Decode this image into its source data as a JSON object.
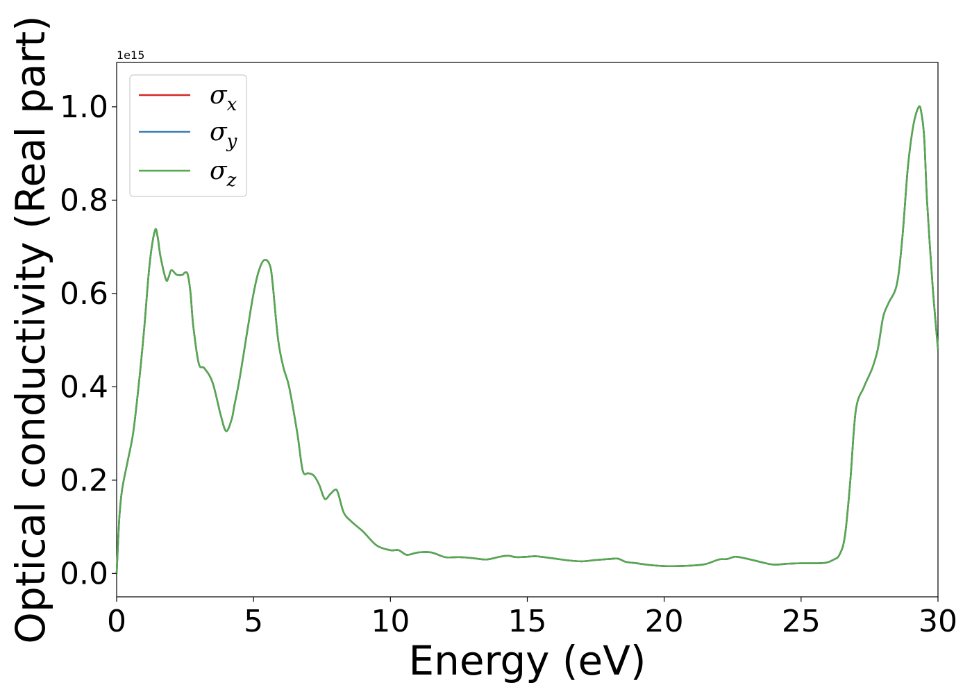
{
  "chart_data": {
    "type": "line",
    "title": "",
    "xlabel": "Energy (eV)",
    "ylabel": "Optical conductivity (Real part)",
    "y_offset_label": "1e15",
    "xlim": [
      0,
      30
    ],
    "ylim": [
      -0.05,
      1.095
    ],
    "xticks": [
      0,
      5,
      10,
      15,
      20,
      25,
      30
    ],
    "xtick_labels": [
      "0",
      "5",
      "10",
      "15",
      "20",
      "25",
      "30"
    ],
    "yticks": [
      0.0,
      0.2,
      0.4,
      0.6,
      0.8,
      1.0
    ],
    "ytick_labels": [
      "0.0",
      "0.2",
      "0.4",
      "0.6",
      "0.8",
      "1.0"
    ],
    "grid": false,
    "legend_position": "top-left",
    "x": [
      0,
      0.1,
      0.2,
      0.4,
      0.6,
      0.8,
      1.0,
      1.2,
      1.4,
      1.5,
      1.6,
      1.8,
      1.9,
      2.0,
      2.2,
      2.4,
      2.5,
      2.6,
      2.7,
      2.8,
      3.0,
      3.2,
      3.5,
      3.8,
      4.0,
      4.2,
      4.3,
      4.5,
      4.8,
      5.0,
      5.2,
      5.4,
      5.6,
      5.7,
      5.9,
      6.1,
      6.3,
      6.6,
      6.8,
      7.0,
      7.2,
      7.4,
      7.6,
      7.8,
      8.0,
      8.1,
      8.3,
      8.6,
      9.0,
      9.5,
      10.0,
      10.3,
      10.6,
      11.0,
      11.5,
      12.0,
      12.5,
      13.0,
      13.5,
      14.0,
      14.3,
      14.6,
      15.0,
      15.3,
      15.6,
      16.0,
      16.5,
      17.0,
      17.5,
      18.0,
      18.3,
      18.6,
      19.0,
      19.5,
      20.0,
      20.5,
      21.0,
      21.5,
      22.0,
      22.3,
      22.6,
      23.0,
      23.5,
      24.0,
      24.5,
      25.0,
      25.5,
      25.9,
      26.2,
      26.4,
      26.6,
      26.8,
      27.0,
      27.3,
      27.6,
      27.8,
      28.0,
      28.2,
      28.5,
      28.7,
      28.9,
      29.1,
      29.3,
      29.4,
      29.5,
      29.6,
      29.8,
      30.0
    ],
    "y_values": [
      0.0,
      0.12,
      0.18,
      0.24,
      0.3,
      0.4,
      0.52,
      0.66,
      0.735,
      0.72,
      0.68,
      0.63,
      0.635,
      0.65,
      0.64,
      0.64,
      0.645,
      0.64,
      0.6,
      0.53,
      0.45,
      0.44,
      0.41,
      0.34,
      0.305,
      0.33,
      0.36,
      0.42,
      0.53,
      0.6,
      0.65,
      0.672,
      0.66,
      0.62,
      0.5,
      0.44,
      0.4,
      0.3,
      0.22,
      0.215,
      0.21,
      0.19,
      0.16,
      0.17,
      0.18,
      0.17,
      0.13,
      0.11,
      0.09,
      0.06,
      0.05,
      0.05,
      0.04,
      0.045,
      0.045,
      0.035,
      0.035,
      0.033,
      0.03,
      0.036,
      0.038,
      0.035,
      0.036,
      0.037,
      0.035,
      0.032,
      0.028,
      0.026,
      0.029,
      0.031,
      0.032,
      0.025,
      0.022,
      0.018,
      0.016,
      0.016,
      0.017,
      0.02,
      0.03,
      0.031,
      0.036,
      0.032,
      0.025,
      0.019,
      0.021,
      0.022,
      0.022,
      0.023,
      0.03,
      0.04,
      0.08,
      0.2,
      0.35,
      0.4,
      0.44,
      0.48,
      0.55,
      0.58,
      0.62,
      0.72,
      0.87,
      0.96,
      1.0,
      0.985,
      0.93,
      0.8,
      0.62,
      0.48
    ],
    "series": [
      {
        "name": "σx",
        "base": "σ",
        "sub": "x",
        "color": "#d62728"
      },
      {
        "name": "σy",
        "base": "σ",
        "sub": "y",
        "color": "#3c7fb1"
      },
      {
        "name": "σz",
        "base": "σ",
        "sub": "z",
        "color": "#55a84f"
      }
    ]
  }
}
